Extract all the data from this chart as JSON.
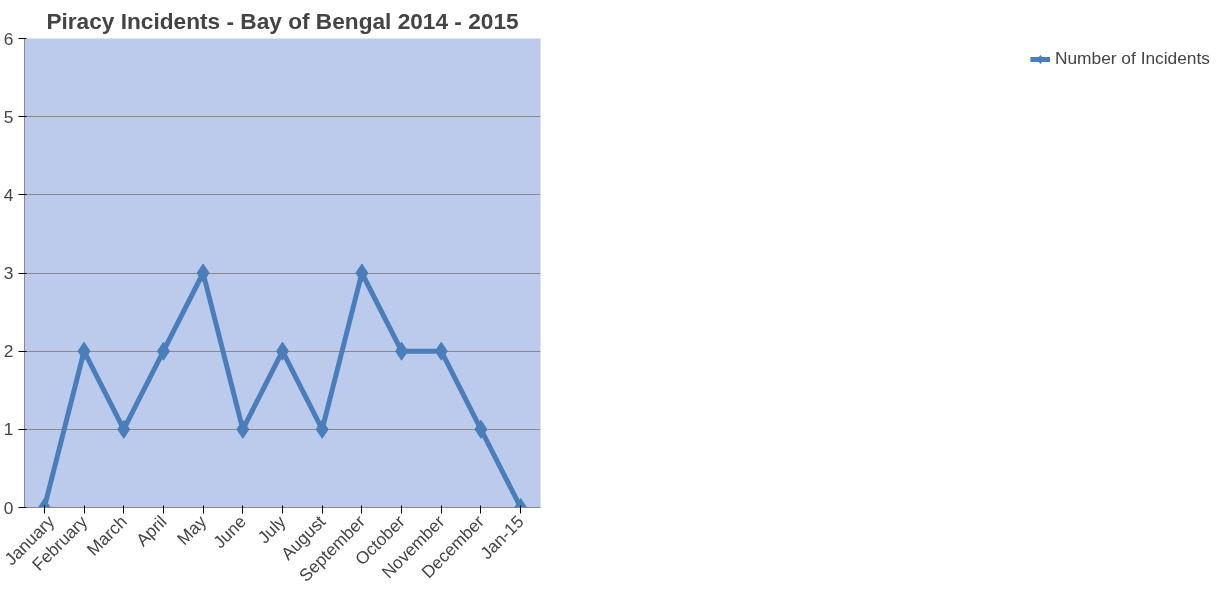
{
  "chart_data": {
    "type": "line",
    "title": "Piracy Incidents - Bay of Bengal 2014 - 2015",
    "categories": [
      "January",
      "February",
      "March",
      "April",
      "May",
      "June",
      "July",
      "August",
      "September",
      "October",
      "November",
      "December",
      "Jan-15"
    ],
    "series": [
      {
        "name": "Number of Incidents",
        "color": "#4a7ebb",
        "values": [
          0,
          2,
          1,
          2,
          3,
          1,
          2,
          1,
          3,
          2,
          2,
          1,
          0
        ]
      }
    ],
    "ylim": [
      0,
      6
    ],
    "yticks": [
      0,
      1,
      2,
      3,
      4,
      5,
      6
    ],
    "grid": "y",
    "legend": "right",
    "marker": "diamond",
    "line_style": "solid"
  }
}
